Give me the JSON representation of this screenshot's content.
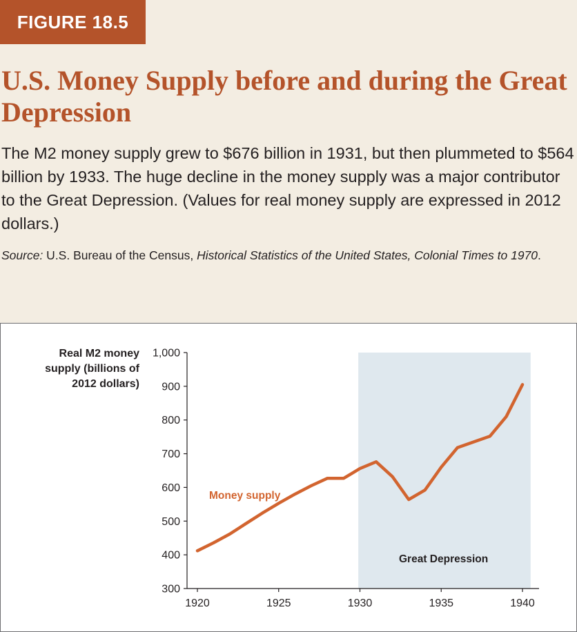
{
  "figure_label": "FIGURE 18.5",
  "title": "U.S. Money Supply before and during the Great Depression",
  "caption": "The M2 money supply grew to $676 billion in 1931, but then plummeted to $564 billion by 1933. The huge decline in the money supply was a major contributor to the Great Depression. (Values for real money supply are expressed in 2012 dollars.)",
  "source": {
    "prefix": "Source:",
    "agency": " U.S. Bureau of the Census, ",
    "work": "Historical Statistics of the United States, Colonial Times to 1970",
    "suffix": "."
  },
  "colors": {
    "brand": "#b4532a",
    "header_bg": "#f3ede2",
    "line": "#d2642f",
    "shade": "#dfe8ee",
    "text": "#231f20"
  },
  "chart_data": {
    "type": "line",
    "title": "",
    "ylabel": "Real M2 money supply (billions of 2012 dollars)",
    "xlabel": "",
    "xlim": [
      1920,
      1941
    ],
    "ylim": [
      300,
      1000
    ],
    "x_ticks": [
      1920,
      1925,
      1930,
      1935,
      1940
    ],
    "y_ticks": [
      300,
      400,
      500,
      600,
      700,
      800,
      900,
      1000
    ],
    "y_tick_labels": [
      "300",
      "400",
      "500",
      "600",
      "700",
      "800",
      "900",
      "1,000"
    ],
    "grid": false,
    "series": [
      {
        "name": "Money supply",
        "x": [
          1920,
          1921,
          1922,
          1923,
          1924,
          1925,
          1926,
          1927,
          1928,
          1929,
          1930,
          1931,
          1932,
          1933,
          1934,
          1935,
          1936,
          1937,
          1938,
          1939,
          1940
        ],
        "values": [
          412,
          436,
          462,
          493,
          524,
          553,
          580,
          605,
          627,
          627,
          656,
          676,
          632,
          564,
          592,
          660,
          718,
          735,
          752,
          810,
          905
        ]
      }
    ],
    "shaded_region": {
      "label": "Great Depression",
      "x_start": 1929.9,
      "x_end": 1940.5
    },
    "annotations": [
      "Money supply",
      "Great Depression"
    ]
  }
}
